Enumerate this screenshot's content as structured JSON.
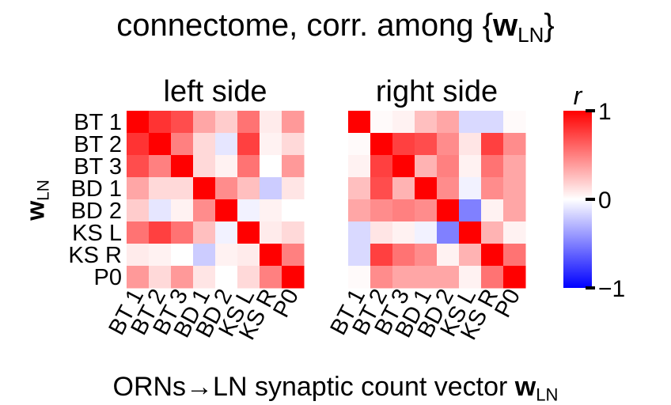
{
  "chart_data": [
    {
      "type": "heatmap",
      "title": "connectome, corr. among {w_LN}",
      "xlabel": "ORNs→LN synaptic count vector w_LN",
      "ylabel": "w_LN",
      "colorbar": {
        "label": "r",
        "range": [
          -1,
          1
        ],
        "ticks": [
          "1",
          "0",
          "−1"
        ],
        "colors": {
          "low": "#0000ff",
          "mid": "#ffffff",
          "high": "#ff0000"
        }
      },
      "panels": [
        {
          "subtitle": "left side",
          "row_labels": [
            "BT 1",
            "BT 2",
            "BT 3",
            "BD 1",
            "BD 2",
            "KS L",
            "KS R",
            "P0"
          ],
          "col_labels": [
            "BT 1",
            "BT 2",
            "BT 3",
            "BD 1",
            "BD 2",
            "KS L",
            "KS R",
            "P0"
          ],
          "values": [
            [
              1.0,
              0.8,
              0.7,
              0.35,
              0.2,
              0.55,
              0.08,
              0.4
            ],
            [
              0.8,
              1.0,
              0.5,
              0.15,
              -0.1,
              0.75,
              0.05,
              0.15
            ],
            [
              0.7,
              0.5,
              1.0,
              0.15,
              0.05,
              0.55,
              0.0,
              0.4
            ],
            [
              0.35,
              0.15,
              0.15,
              1.0,
              0.45,
              0.25,
              -0.2,
              0.1
            ],
            [
              0.2,
              -0.1,
              0.05,
              0.45,
              1.0,
              -0.05,
              0.05,
              0.0
            ],
            [
              0.55,
              0.75,
              0.55,
              0.25,
              -0.05,
              1.0,
              0.08,
              0.15
            ],
            [
              0.08,
              0.05,
              0.0,
              -0.2,
              0.05,
              0.08,
              1.0,
              0.5
            ],
            [
              0.4,
              0.15,
              0.4,
              0.1,
              0.0,
              0.15,
              0.5,
              1.0
            ]
          ]
        },
        {
          "subtitle": "right side",
          "row_labels": [
            "BT 1",
            "BT 2",
            "BT 3",
            "BD 1",
            "BD 2",
            "KS L",
            "KS R",
            "P0"
          ],
          "col_labels": [
            "BT 1",
            "BT 2",
            "BT 3",
            "BD 1",
            "BD 2",
            "KS L",
            "KS R",
            "P0"
          ],
          "values": [
            [
              1.0,
              0.02,
              0.05,
              0.25,
              0.35,
              -0.15,
              -0.15,
              0.02
            ],
            [
              0.02,
              1.0,
              0.75,
              0.7,
              0.45,
              0.1,
              0.75,
              0.45
            ],
            [
              0.05,
              0.75,
              1.0,
              0.3,
              0.5,
              0.05,
              0.55,
              0.35
            ],
            [
              0.25,
              0.7,
              0.3,
              1.0,
              0.45,
              -0.05,
              0.45,
              0.35
            ],
            [
              0.35,
              0.45,
              0.5,
              0.45,
              1.0,
              -0.5,
              0.05,
              0.35
            ],
            [
              -0.15,
              0.1,
              0.05,
              -0.05,
              -0.5,
              1.0,
              0.3,
              0.05
            ],
            [
              -0.15,
              0.75,
              0.55,
              0.45,
              0.05,
              0.3,
              1.0,
              0.55
            ],
            [
              0.02,
              0.45,
              0.35,
              0.35,
              0.35,
              0.05,
              0.55,
              1.0
            ]
          ]
        }
      ]
    }
  ]
}
